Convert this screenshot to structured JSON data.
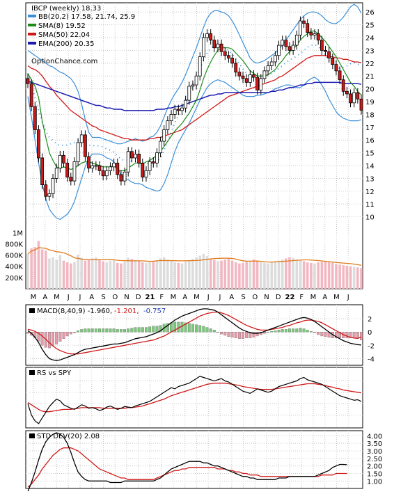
{
  "chart_data": {
    "type": "line",
    "title": "IBCP (weekly) 18.33",
    "watermark": "OptionChance.com",
    "months": [
      "M",
      "A",
      "M",
      "J",
      "J",
      "A",
      "S",
      "O",
      "N",
      "D",
      "21",
      "F",
      "M",
      "A",
      "M",
      "J",
      "J",
      "A",
      "S",
      "O",
      "N",
      "D",
      "22",
      "F",
      "M",
      "A",
      "M",
      "J"
    ],
    "legend": [
      {
        "label": "BB(20,2) 17.58, 21.74, 25.9",
        "color": "#3a8fd8"
      },
      {
        "label": "SMA(8) 19.52",
        "color": "#1a8a1a"
      },
      {
        "label": "SMA(50) 22.04",
        "color": "#d01818"
      },
      {
        "label": "EMA(200) 20.35",
        "color": "#1a1ab0"
      }
    ],
    "price_axis": {
      "range": [
        9,
        26.5
      ],
      "ticks": [
        "10",
        "11",
        "12",
        "13",
        "14",
        "15",
        "16",
        "17",
        "18",
        "19",
        "20",
        "21",
        "22",
        "23",
        "24",
        "25",
        "26"
      ]
    },
    "volume_axis": {
      "ticks": [
        "1M",
        "800K",
        "600K",
        "400K",
        "200K"
      ]
    },
    "series": {
      "close": [
        20.4,
        18.6,
        16.8,
        14.6,
        12.5,
        11.6,
        11.8,
        13.0,
        13.8,
        14.8,
        14.2,
        13.1,
        12.8,
        14.3,
        15.8,
        16.4,
        14.7,
        13.8,
        14.0,
        14.0,
        13.6,
        13.2,
        13.6,
        13.9,
        14.2,
        13.3,
        12.8,
        13.5,
        15.1,
        14.6,
        14.9,
        14.2,
        13.1,
        13.6,
        14.3,
        14.2,
        15.0,
        15.9,
        16.8,
        17.5,
        18.0,
        18.4,
        18.3,
        18.5,
        19.1,
        20.2,
        20.3,
        21.0,
        22.5,
        24.0,
        24.3,
        23.8,
        23.2,
        23.5,
        22.9,
        22.6,
        22.4,
        22.0,
        21.3,
        21.0,
        20.8,
        20.5,
        21.1,
        20.9,
        19.9,
        20.8,
        21.4,
        21.8,
        22.1,
        22.6,
        23.4,
        23.8,
        23.3,
        23.0,
        23.4,
        24.2,
        25.3,
        25.1,
        24.4,
        24.2,
        24.3,
        23.8,
        23.0,
        22.9,
        22.4,
        21.9,
        21.4,
        20.7,
        19.8,
        19.6,
        18.9,
        19.7,
        19.2,
        18.33
      ],
      "sma8": [
        21.2,
        20.7,
        20.2,
        19.3,
        17.5,
        16.2,
        15.0,
        14.4,
        13.9,
        13.8,
        13.9,
        13.8,
        13.7,
        13.8,
        14.0,
        14.2,
        14.3,
        14.3,
        14.2,
        14.1,
        14.0,
        13.9,
        13.9,
        13.9,
        14.0,
        13.7,
        13.6,
        13.6,
        13.8,
        14.0,
        14.2,
        14.2,
        14.1,
        14.3,
        14.4,
        14.6,
        14.8,
        15.1,
        15.5,
        15.9,
        16.3,
        16.7,
        17.0,
        17.3,
        17.7,
        18.1,
        18.6,
        19.1,
        19.9,
        20.8,
        21.5,
        22.1,
        22.6,
        23.0,
        23.2,
        23.2,
        23.2,
        23.1,
        22.8,
        22.5,
        22.2,
        21.8,
        21.4,
        21.2,
        21.0,
        21.0,
        21.0,
        21.1,
        21.3,
        21.5,
        21.9,
        22.2,
        22.6,
        22.9,
        23.1,
        23.4,
        23.8,
        24.1,
        24.3,
        24.5,
        24.5,
        24.3,
        24.0,
        23.7,
        23.3,
        22.9,
        22.5,
        22.0,
        21.5,
        21.0,
        20.5,
        20.2,
        19.8,
        19.52
      ],
      "sma50": [
        21.8,
        21.6,
        21.5,
        21.3,
        21.0,
        20.6,
        20.2,
        19.9,
        19.5,
        19.2,
        18.9,
        18.6,
        18.3,
        18.1,
        17.9,
        17.7,
        17.5,
        17.3,
        17.1,
        17.0,
        16.8,
        16.7,
        16.6,
        16.5,
        16.4,
        16.3,
        16.2,
        16.1,
        16.1,
        16.0,
        16.0,
        16.0,
        16.0,
        16.0,
        16.1,
        16.1,
        16.2,
        16.2,
        16.3,
        16.4,
        16.5,
        16.6,
        16.7,
        16.8,
        17.0,
        17.2,
        17.4,
        17.6,
        17.8,
        18.0,
        18.2,
        18.4,
        18.6,
        18.8,
        19.0,
        19.2,
        19.4,
        19.5,
        19.6,
        19.7,
        19.8,
        19.9,
        20.0,
        20.1,
        20.2,
        20.3,
        20.4,
        20.5,
        20.6,
        20.7,
        20.9,
        21.0,
        21.2,
        21.4,
        21.6,
        21.8,
        22.0,
        22.2,
        22.4,
        22.5,
        22.6,
        22.6,
        22.6,
        22.6,
        22.5,
        22.5,
        22.4,
        22.4,
        22.3,
        22.3,
        22.2,
        22.1,
        22.1,
        22.04
      ],
      "ema200": [
        20.6,
        20.5,
        20.4,
        20.3,
        20.2,
        20.1,
        20.0,
        19.9,
        19.8,
        19.7,
        19.6,
        19.5,
        19.4,
        19.3,
        19.2,
        19.1,
        19.0,
        18.9,
        18.8,
        18.7,
        18.7,
        18.6,
        18.5,
        18.5,
        18.4,
        18.4,
        18.4,
        18.3,
        18.3,
        18.3,
        18.3,
        18.3,
        18.3,
        18.3,
        18.3,
        18.3,
        18.4,
        18.4,
        18.4,
        18.5,
        18.5,
        18.6,
        18.6,
        18.7,
        18.8,
        18.9,
        19.0,
        19.1,
        19.2,
        19.3,
        19.4,
        19.5,
        19.5,
        19.6,
        19.6,
        19.7,
        19.7,
        19.7,
        19.7,
        19.7,
        19.7,
        19.7,
        19.7,
        19.7,
        19.7,
        19.7,
        19.7,
        19.7,
        19.8,
        19.8,
        19.9,
        19.9,
        20.0,
        20.1,
        20.1,
        20.2,
        20.3,
        20.3,
        20.4,
        20.4,
        20.5,
        20.5,
        20.5,
        20.5,
        20.5,
        20.5,
        20.5,
        20.5,
        20.4,
        20.4,
        20.4,
        20.4,
        20.4,
        20.35
      ],
      "bb_upper": [
        23.0,
        22.8,
        22.6,
        22.4,
        22.2,
        22.0,
        21.8,
        21.7,
        21.5,
        21.3,
        21.2,
        21.0,
        20.8,
        20.4,
        19.8,
        18.8,
        17.6,
        16.6,
        16.2,
        16.2,
        16.2,
        16.1,
        16.0,
        15.9,
        15.8,
        15.7,
        15.7,
        15.8,
        15.9,
        16.0,
        16.1,
        16.0,
        15.9,
        16.0,
        16.2,
        16.3,
        16.6,
        17.1,
        17.8,
        18.5,
        19.1,
        19.6,
        20.0,
        20.5,
        21.1,
        21.8,
        22.5,
        23.2,
        24.0,
        24.8,
        25.5,
        25.9,
        26.1,
        26.1,
        26.0,
        25.9,
        25.7,
        25.3,
        24.8,
        24.2,
        23.6,
        23.0,
        22.4,
        22.1,
        22.0,
        22.1,
        22.2,
        22.4,
        22.6,
        22.8,
        23.1,
        23.4,
        23.8,
        24.2,
        24.6,
        25.0,
        25.4,
        25.7,
        25.9,
        26.0,
        26.0,
        25.9,
        25.7,
        25.4,
        25.2,
        25.1,
        25.1,
        25.3,
        25.6,
        26.0,
        26.4,
        26.6,
        26.4,
        25.9
      ],
      "bb_lower": [
        19.4,
        17.8,
        16.0,
        14.2,
        12.6,
        11.4,
        10.6,
        10.2,
        9.9,
        9.8,
        10.0,
        10.2,
        10.6,
        11.2,
        12.1,
        13.0,
        13.9,
        14.6,
        14.9,
        14.9,
        14.9,
        14.8,
        14.6,
        14.5,
        14.3,
        13.8,
        13.3,
        13.0,
        12.9,
        12.7,
        12.6,
        12.6,
        12.5,
        12.3,
        12.2,
        12.1,
        12.0,
        12.1,
        12.6,
        13.3,
        14.2,
        15.1,
        15.8,
        16.3,
        16.8,
        17.3,
        17.9,
        18.5,
        19.1,
        19.6,
        20.1,
        20.4,
        20.6,
        20.7,
        20.6,
        20.5,
        20.3,
        20.1,
        19.9,
        19.7,
        19.5,
        19.4,
        19.4,
        19.4,
        19.5,
        19.5,
        19.6,
        19.7,
        19.8,
        20.0,
        20.1,
        20.2,
        20.3,
        20.3,
        20.2,
        20.1,
        20.1,
        20.3,
        20.6,
        20.8,
        20.9,
        20.7,
        20.3,
        19.8,
        19.2,
        18.7,
        18.2,
        17.9,
        17.7,
        17.6,
        17.5,
        17.5,
        17.5,
        17.58
      ],
      "volume": [
        620,
        720,
        740,
        850,
        700,
        680,
        540,
        560,
        520,
        600,
        500,
        470,
        450,
        480,
        610,
        550,
        500,
        510,
        540,
        560,
        520,
        490,
        470,
        500,
        520,
        460,
        450,
        480,
        550,
        530,
        510,
        490,
        470,
        460,
        470,
        490,
        510,
        540,
        560,
        520,
        500,
        470,
        460,
        450,
        480,
        500,
        530,
        560,
        590,
        620,
        580,
        540,
        510,
        490,
        500,
        520,
        540,
        500,
        470,
        450,
        460,
        480,
        500,
        520,
        490,
        470,
        460,
        450,
        470,
        490,
        500,
        520,
        540,
        560,
        550,
        520,
        500,
        490,
        470,
        460,
        450,
        470,
        480,
        490,
        470,
        460,
        440,
        430,
        420,
        410,
        400,
        390,
        380,
        370
      ],
      "macd": [
        0.2,
        -0.2,
        -0.8,
        -1.6,
        -2.6,
        -3.4,
        -4.0,
        -4.2,
        -4.3,
        -4.2,
        -4.0,
        -3.8,
        -3.6,
        -3.4,
        -3.1,
        -2.8,
        -2.6,
        -2.5,
        -2.4,
        -2.3,
        -2.2,
        -2.1,
        -2.0,
        -1.9,
        -1.8,
        -1.8,
        -1.7,
        -1.6,
        -1.4,
        -1.2,
        -1.0,
        -0.9,
        -0.8,
        -0.7,
        -0.5,
        -0.3,
        -0.1,
        0.2,
        0.6,
        1.0,
        1.4,
        1.8,
        2.1,
        2.4,
        2.6,
        2.8,
        3.0,
        3.2,
        3.4,
        3.5,
        3.5,
        3.4,
        3.3,
        3.0,
        2.6,
        2.2,
        1.8,
        1.4,
        1.0,
        0.6,
        0.3,
        0.1,
        -0.1,
        -0.2,
        -0.2,
        -0.1,
        0.1,
        0.3,
        0.5,
        0.7,
        0.9,
        1.1,
        1.3,
        1.5,
        1.7,
        1.9,
        2.1,
        2.2,
        2.1,
        1.9,
        1.6,
        1.2,
        0.8,
        0.4,
        0.0,
        -0.4,
        -0.7,
        -1.0,
        -1.3,
        -1.5,
        -1.7,
        -1.8,
        -1.9,
        -1.96
      ],
      "macd_signal": [
        0.4,
        0.3,
        0.1,
        -0.2,
        -0.6,
        -1.1,
        -1.6,
        -2.1,
        -2.5,
        -2.8,
        -3.0,
        -3.2,
        -3.3,
        -3.3,
        -3.3,
        -3.2,
        -3.1,
        -3.0,
        -2.9,
        -2.8,
        -2.7,
        -2.6,
        -2.5,
        -2.4,
        -2.3,
        -2.2,
        -2.1,
        -2.0,
        -1.9,
        -1.8,
        -1.7,
        -1.6,
        -1.5,
        -1.4,
        -1.3,
        -1.2,
        -1.0,
        -0.8,
        -0.6,
        -0.3,
        0.0,
        0.3,
        0.6,
        0.9,
        1.2,
        1.5,
        1.8,
        2.1,
        2.4,
        2.6,
        2.8,
        2.9,
        3.0,
        3.0,
        2.9,
        2.7,
        2.5,
        2.2,
        1.9,
        1.6,
        1.3,
        1.0,
        0.8,
        0.6,
        0.4,
        0.3,
        0.3,
        0.3,
        0.4,
        0.5,
        0.6,
        0.7,
        0.9,
        1.0,
        1.2,
        1.4,
        1.5,
        1.7,
        1.8,
        1.8,
        1.7,
        1.6,
        1.4,
        1.1,
        0.8,
        0.5,
        0.2,
        -0.1,
        -0.4,
        -0.6,
        -0.8,
        -0.9,
        -0.95,
        -0.757
      ],
      "rs": [
        40,
        20,
        10,
        5,
        15,
        25,
        35,
        42,
        48,
        45,
        38,
        35,
        32,
        30,
        34,
        38,
        36,
        32,
        33,
        31,
        28,
        30,
        34,
        36,
        33,
        30,
        32,
        35,
        34,
        33,
        36,
        38,
        40,
        42,
        44,
        48,
        52,
        56,
        60,
        64,
        68,
        66,
        70,
        72,
        74,
        76,
        80,
        84,
        88,
        86,
        84,
        82,
        80,
        82,
        84,
        80,
        78,
        74,
        70,
        66,
        62,
        60,
        58,
        62,
        66,
        64,
        62,
        60,
        62,
        66,
        70,
        72,
        74,
        76,
        78,
        80,
        84,
        86,
        82,
        80,
        78,
        76,
        74,
        70,
        66,
        62,
        58,
        54,
        52,
        50,
        48,
        46,
        47,
        44
      ],
      "rs_ma": [
        42,
        38,
        34,
        30,
        27,
        26,
        26,
        27,
        28,
        29,
        30,
        30,
        30,
        31,
        32,
        33,
        33,
        33,
        33,
        33,
        33,
        32,
        32,
        32,
        32,
        32,
        32,
        32,
        33,
        33,
        34,
        35,
        36,
        38,
        40,
        42,
        44,
        46,
        48,
        51,
        54,
        56,
        58,
        60,
        62,
        64,
        66,
        68,
        70,
        72,
        74,
        75,
        76,
        76,
        76,
        76,
        75,
        74,
        73,
        72,
        70,
        69,
        68,
        67,
        66,
        65,
        65,
        65,
        65,
        66,
        67,
        68,
        69,
        70,
        71,
        72,
        73,
        74,
        75,
        75,
        75,
        74,
        73,
        72,
        70,
        69,
        67,
        66,
        64,
        63,
        62,
        61,
        60,
        59
      ],
      "std": [
        0.3,
        0.9,
        1.6,
        2.4,
        3.1,
        3.6,
        3.9,
        4.1,
        4.2,
        4.1,
        3.9,
        3.5,
        2.9,
        2.2,
        1.6,
        1.3,
        1.1,
        1.0,
        1.0,
        1.0,
        1.0,
        1.0,
        1.0,
        0.9,
        0.9,
        0.9,
        0.9,
        1.0,
        1.0,
        1.0,
        1.0,
        1.0,
        1.0,
        1.0,
        1.0,
        1.0,
        1.1,
        1.2,
        1.4,
        1.6,
        1.8,
        1.9,
        2.0,
        2.1,
        2.2,
        2.3,
        2.3,
        2.3,
        2.3,
        2.2,
        2.2,
        2.1,
        2.0,
        2.0,
        1.9,
        1.8,
        1.7,
        1.6,
        1.5,
        1.4,
        1.3,
        1.3,
        1.2,
        1.2,
        1.1,
        1.1,
        1.1,
        1.1,
        1.1,
        1.1,
        1.2,
        1.2,
        1.2,
        1.3,
        1.3,
        1.3,
        1.3,
        1.3,
        1.3,
        1.3,
        1.3,
        1.4,
        1.5,
        1.6,
        1.7,
        1.9,
        2.0,
        2.1,
        2.1,
        2.08
      ],
      "std_ma": [
        0.6,
        0.8,
        1.1,
        1.4,
        1.8,
        2.1,
        2.4,
        2.7,
        2.9,
        3.1,
        3.2,
        3.2,
        3.2,
        3.1,
        3.0,
        2.8,
        2.6,
        2.4,
        2.2,
        2.0,
        1.8,
        1.7,
        1.6,
        1.5,
        1.4,
        1.3,
        1.2,
        1.2,
        1.1,
        1.1,
        1.1,
        1.1,
        1.1,
        1.1,
        1.1,
        1.1,
        1.2,
        1.3,
        1.4,
        1.5,
        1.6,
        1.7,
        1.7,
        1.8,
        1.8,
        1.9,
        1.9,
        1.9,
        1.9,
        1.9,
        1.9,
        1.9,
        1.9,
        1.8,
        1.8,
        1.8,
        1.7,
        1.7,
        1.6,
        1.6,
        1.5,
        1.5,
        1.4,
        1.4,
        1.4,
        1.3,
        1.3,
        1.3,
        1.3,
        1.3,
        1.3,
        1.3,
        1.3,
        1.3,
        1.3,
        1.3,
        1.3,
        1.3,
        1.3,
        1.3,
        1.3,
        1.3,
        1.4,
        1.4,
        1.4,
        1.4,
        1.5,
        1.5,
        1.5,
        1.5
      ]
    },
    "macd_panel": {
      "label": "MACD(8,40,9) -1.960,",
      "v1": "-1.201,",
      "v2": "-0.757",
      "ticks": [
        "2",
        "0",
        "-2",
        "-4"
      ],
      "range": [
        -4.8,
        3.8
      ]
    },
    "rs_panel": {
      "label": "RS vs SPY",
      "range": [
        0,
        100
      ]
    },
    "std_panel": {
      "label": "STD DEV(20) 2.08",
      "ticks": [
        "4.00",
        "3.50",
        "3.00",
        "2.50",
        "2.00",
        "1.50",
        "1.00"
      ],
      "range": [
        0.6,
        4.2
      ]
    }
  }
}
